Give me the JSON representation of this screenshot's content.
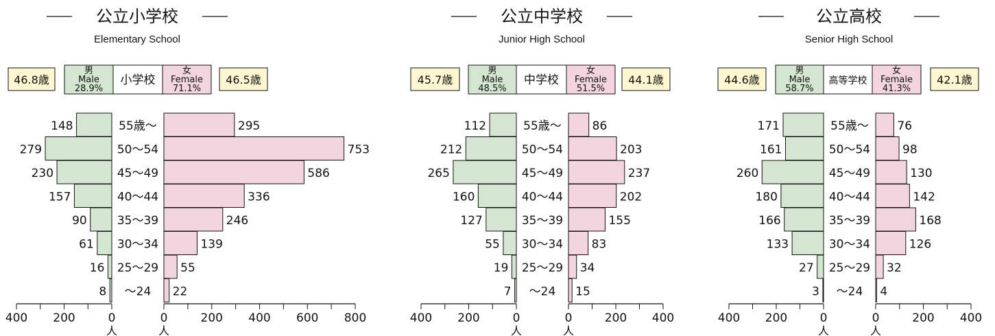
{
  "colors": {
    "male": "#d4e6cf",
    "female": "#f3d5e0",
    "avg_box": "#fdf8d2",
    "stroke": "#111111"
  },
  "chart_data": [
    {
      "type": "bar",
      "orientation": "horizontal-population-pyramid",
      "title": "公立小学校",
      "subtitle": "Elementary School",
      "center_label": "小学校",
      "male_label_jp": "男",
      "male_label_en": "Male",
      "male_share": "28.9%",
      "female_label_jp": "女",
      "female_label_en": "Female",
      "female_share": "71.1%",
      "male_avg_age": "46.8歳",
      "female_avg_age": "46.5歳",
      "categories": [
        "55歳～",
        "50～54",
        "45～49",
        "40～44",
        "35～39",
        "30～34",
        "25～29",
        "～24"
      ],
      "series": [
        {
          "name": "男",
          "values": [
            148,
            279,
            230,
            157,
            90,
            61,
            16,
            8
          ]
        },
        {
          "name": "女",
          "values": [
            295,
            753,
            586,
            336,
            246,
            139,
            55,
            22
          ]
        }
      ],
      "male_axis": {
        "ticks": [
          "400",
          "200",
          "0"
        ],
        "max": 400,
        "unit": "人"
      },
      "female_axis": {
        "ticks": [
          "0",
          "200",
          "400",
          "600",
          "800"
        ],
        "max": 800,
        "unit": "人"
      }
    },
    {
      "type": "bar",
      "orientation": "horizontal-population-pyramid",
      "title": "公立中学校",
      "subtitle": "Junior High School",
      "center_label": "中学校",
      "male_label_jp": "男",
      "male_label_en": "Male",
      "male_share": "48.5%",
      "female_label_jp": "女",
      "female_label_en": "Female",
      "female_share": "51.5%",
      "male_avg_age": "45.7歳",
      "female_avg_age": "44.1歳",
      "categories": [
        "55歳～",
        "50～54",
        "45～49",
        "40～44",
        "35～39",
        "30～34",
        "25～29",
        "～24"
      ],
      "series": [
        {
          "name": "男",
          "values": [
            112,
            212,
            265,
            160,
            127,
            55,
            19,
            7
          ]
        },
        {
          "name": "女",
          "values": [
            86,
            203,
            237,
            202,
            155,
            83,
            34,
            15
          ]
        }
      ],
      "male_axis": {
        "ticks": [
          "400",
          "200",
          "0"
        ],
        "max": 400,
        "unit": "人"
      },
      "female_axis": {
        "ticks": [
          "0",
          "200",
          "400"
        ],
        "max": 400,
        "unit": "人"
      }
    },
    {
      "type": "bar",
      "orientation": "horizontal-population-pyramid",
      "title": "公立高校",
      "subtitle": "Senior High School",
      "center_label": "高等学校",
      "male_label_jp": "男",
      "male_label_en": "Male",
      "male_share": "58.7%",
      "female_label_jp": "女",
      "female_label_en": "Female",
      "female_share": "41.3%",
      "male_avg_age": "44.6歳",
      "female_avg_age": "42.1歳",
      "categories": [
        "55歳～",
        "50～54",
        "45～49",
        "40～44",
        "35～39",
        "30～34",
        "25～29",
        "～24"
      ],
      "series": [
        {
          "name": "男",
          "values": [
            171,
            161,
            260,
            180,
            166,
            133,
            27,
            3
          ]
        },
        {
          "name": "女",
          "values": [
            76,
            98,
            130,
            142,
            168,
            126,
            32,
            4
          ]
        }
      ],
      "male_axis": {
        "ticks": [
          "400",
          "200",
          "0"
        ],
        "max": 400,
        "unit": "人"
      },
      "female_axis": {
        "ticks": [
          "0",
          "200",
          "400"
        ],
        "max": 400,
        "unit": "人"
      }
    }
  ]
}
